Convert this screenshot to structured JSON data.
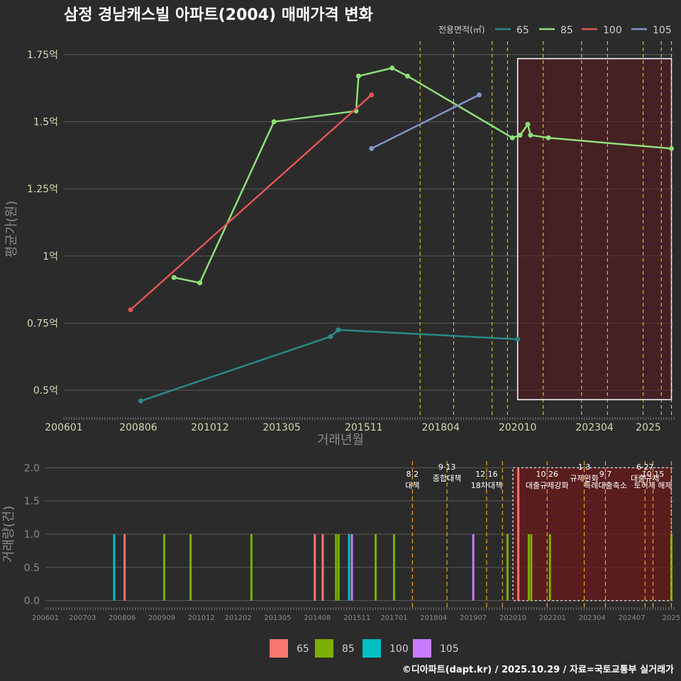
{
  "title": "삼정 경남캐스빌 아파트(2004) 매매가격 변화",
  "footer": "©디아파트(dapt.kr) / 2025.10.29 / 자료=국토교통부 실거래가",
  "chart_data": [
    {
      "type": "line",
      "title": "삼정 경남캐스빌 아파트(2004) 매매가격 변화",
      "xlabel": "거래년월",
      "ylabel": "평균가(원)",
      "xlim": [
        2006.0,
        2025.83
      ],
      "ylim": [
        0.4,
        1.8
      ],
      "yticks": [
        0.5,
        0.75,
        1.0,
        1.25,
        1.5,
        1.75
      ],
      "ytick_labels": [
        "0.5억",
        "0.75억",
        "1억",
        "1.25억",
        "1.5억",
        "1.75억"
      ],
      "xticks": [
        2006.0,
        2008.42,
        2010.75,
        2013.08,
        2015.75,
        2018.25,
        2020.75,
        2023.25,
        2025.0
      ],
      "xtick_labels": [
        "200601",
        "200806",
        "201012",
        "201305",
        "201511",
        "201804",
        "202010",
        "202304",
        "2025"
      ],
      "legend_title": "전용면적(㎡)",
      "legend": [
        "65",
        "85",
        "100",
        "105"
      ],
      "highlight_range": [
        2020.75,
        2025.75
      ],
      "policy_dates": [
        2017.58,
        2018.67,
        2019.92,
        2020.42,
        2021.58,
        2022.83,
        2023.67,
        2024.83,
        2025.42,
        2025.75
      ],
      "series": [
        {
          "name": "65",
          "color": "#2a8a86",
          "points": [
            [
              2008.5,
              0.46
            ],
            [
              2014.67,
              0.7
            ],
            [
              2014.92,
              0.725
            ],
            [
              2020.75,
              0.69
            ]
          ]
        },
        {
          "name": "85",
          "color": "#8ee07a",
          "points": [
            [
              2009.58,
              0.92
            ],
            [
              2010.42,
              0.9
            ],
            [
              2012.83,
              1.5
            ],
            [
              2015.5,
              1.54
            ],
            [
              2015.58,
              1.67
            ],
            [
              2016.67,
              1.7
            ],
            [
              2017.17,
              1.67
            ],
            [
              2020.58,
              1.44
            ],
            [
              2020.83,
              1.45
            ],
            [
              2021.08,
              1.49
            ],
            [
              2021.17,
              1.45
            ],
            [
              2021.75,
              1.44
            ],
            [
              2025.75,
              1.4
            ]
          ]
        },
        {
          "name": "100",
          "color": "#e05555",
          "points": [
            [
              2008.17,
              0.8
            ],
            [
              2016.0,
              1.6
            ]
          ]
        },
        {
          "name": "105",
          "color": "#7f97c8",
          "points": [
            [
              2016.0,
              1.4
            ],
            [
              2019.5,
              1.6
            ]
          ]
        }
      ]
    },
    {
      "type": "bar",
      "ylabel": "거래량(건)",
      "xlim": [
        2006.0,
        2025.83
      ],
      "ylim": [
        -0.1,
        2.1
      ],
      "yticks": [
        0.0,
        0.5,
        1.0,
        1.5,
        2.0
      ],
      "ytick_labels": [
        "0.0",
        "0.5",
        "1.0",
        "1.5",
        "2.0"
      ],
      "xticks": [
        2006.0,
        2007.17,
        2008.42,
        2009.67,
        2010.92,
        2012.08,
        2013.33,
        2014.58,
        2015.83,
        2017.0,
        2018.25,
        2019.5,
        2020.75,
        2022.0,
        2023.25,
        2024.5,
        2025.75
      ],
      "xtick_labels": [
        "200601",
        "200703",
        "200806",
        "200909",
        "201012",
        "201202",
        "201305",
        "201408",
        "201511",
        "201701",
        "201804",
        "201907",
        "202010",
        "202201",
        "202304",
        "202407",
        "2025"
      ],
      "legend": [
        "65",
        "85",
        "100",
        "105"
      ],
      "colors": [
        "#f8766d",
        "#7cae00",
        "#00bfc4",
        "#c77cff"
      ],
      "highlight_range": [
        2020.75,
        2025.75
      ],
      "bars": [
        {
          "x": 2008.17,
          "series": "100",
          "value": 1
        },
        {
          "x": 2008.5,
          "series": "65",
          "value": 1
        },
        {
          "x": 2009.75,
          "series": "85",
          "value": 1
        },
        {
          "x": 2010.58,
          "series": "85",
          "value": 1
        },
        {
          "x": 2012.5,
          "series": "85",
          "value": 1
        },
        {
          "x": 2014.5,
          "series": "65",
          "value": 1
        },
        {
          "x": 2014.75,
          "series": "65",
          "value": 1
        },
        {
          "x": 2015.17,
          "series": "85",
          "value": 1
        },
        {
          "x": 2015.25,
          "series": "85",
          "value": 1
        },
        {
          "x": 2015.58,
          "series": "100",
          "value": 1
        },
        {
          "x": 2015.67,
          "series": "105",
          "value": 1
        },
        {
          "x": 2016.42,
          "series": "85",
          "value": 1
        },
        {
          "x": 2017.0,
          "series": "85",
          "value": 1
        },
        {
          "x": 2019.5,
          "series": "105",
          "value": 1
        },
        {
          "x": 2020.58,
          "series": "85",
          "value": 1
        },
        {
          "x": 2020.92,
          "series": "65",
          "value": 2
        },
        {
          "x": 2021.25,
          "series": "85",
          "value": 1
        },
        {
          "x": 2021.33,
          "series": "85",
          "value": 1
        },
        {
          "x": 2021.92,
          "series": "85",
          "value": 1
        },
        {
          "x": 2025.75,
          "series": "85",
          "value": 1
        }
      ],
      "events": [
        {
          "x": 2017.58,
          "label": "8·2 대책"
        },
        {
          "x": 2018.67,
          "label": "9·13 종합대책"
        },
        {
          "x": 2019.92,
          "label": "12·16 18차대책"
        },
        {
          "x": 2020.42,
          "label": ""
        },
        {
          "x": 2021.83,
          "label": "10·26 대출규제강화"
        },
        {
          "x": 2023.0,
          "label": "1·3 규제완화"
        },
        {
          "x": 2023.67,
          "label": "9·7 특례대출축소"
        },
        {
          "x": 2024.92,
          "label": "6·27 대출규제"
        },
        {
          "x": 2025.17,
          "label": "10·15 토허제 해제"
        },
        {
          "x": 2025.75,
          "label": ""
        }
      ]
    }
  ]
}
